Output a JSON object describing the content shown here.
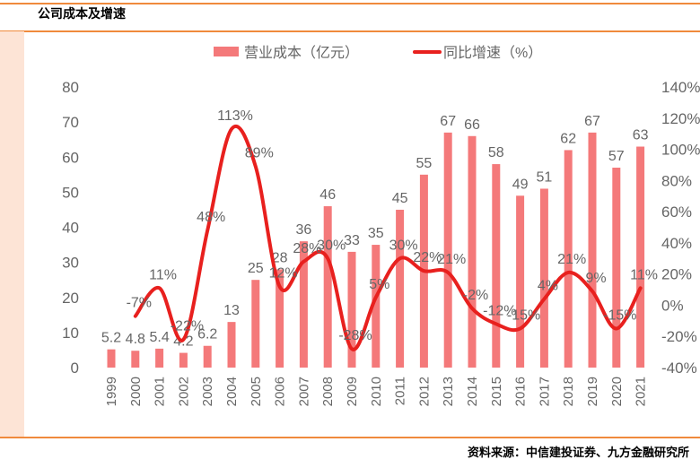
{
  "title": "公司成本及增速",
  "source": "资料来源：中信建投证券、九方金融研究所",
  "chart_data": {
    "type": "bar+line",
    "categories": [
      "1999",
      "2000",
      "2001",
      "2002",
      "2003",
      "2004",
      "2005",
      "2006",
      "2007",
      "2008",
      "2009",
      "2010",
      "2011",
      "2012",
      "2013",
      "2014",
      "2015",
      "2016",
      "2017",
      "2018",
      "2019",
      "2020",
      "2021"
    ],
    "series": [
      {
        "name": "营业成本（亿元）",
        "type": "bar",
        "axis": "left",
        "color": "#f4797a",
        "values": [
          5.2,
          4.8,
          5.4,
          4.2,
          6.2,
          13,
          25,
          28,
          36,
          46,
          33,
          35,
          45,
          55,
          67,
          66,
          58,
          49,
          51,
          62,
          67,
          57,
          63
        ],
        "labels": [
          "5.2",
          "4.8",
          "5.4",
          "4.2",
          "6.2",
          "13",
          "25",
          "28",
          "36",
          "46",
          "33",
          "35",
          "45",
          "55",
          "67",
          "66",
          "58",
          "49",
          "51",
          "62",
          "67",
          "57",
          "63"
        ]
      },
      {
        "name": "同比增速（%）",
        "type": "line",
        "axis": "right",
        "color": "#e8201e",
        "values": [
          null,
          -7,
          11,
          -22,
          48,
          113,
          89,
          12,
          28,
          30,
          -28,
          5,
          30,
          22,
          21,
          -2,
          -12,
          -15,
          4,
          21,
          9,
          -15,
          11
        ],
        "labels": [
          "",
          "-7%",
          "11%",
          "-22%",
          "48%",
          "113%",
          "89%",
          "12%",
          "28%",
          "30%",
          "-28%",
          "5%",
          "30%",
          "22%",
          "21%",
          "-2%",
          "-12%",
          "-15%",
          "4%",
          "21%",
          "9%",
          "-15%",
          "11%"
        ]
      }
    ],
    "left_axis": {
      "ylim": [
        0,
        80
      ],
      "ticks": [
        "0",
        "10",
        "20",
        "30",
        "40",
        "50",
        "60",
        "70",
        "80"
      ]
    },
    "right_axis": {
      "ylim": [
        -40,
        140
      ],
      "ticks": [
        "-40%",
        "-20%",
        "0%",
        "20%",
        "40%",
        "60%",
        "80%",
        "100%",
        "120%",
        "140%"
      ]
    },
    "legend": "top-center"
  }
}
